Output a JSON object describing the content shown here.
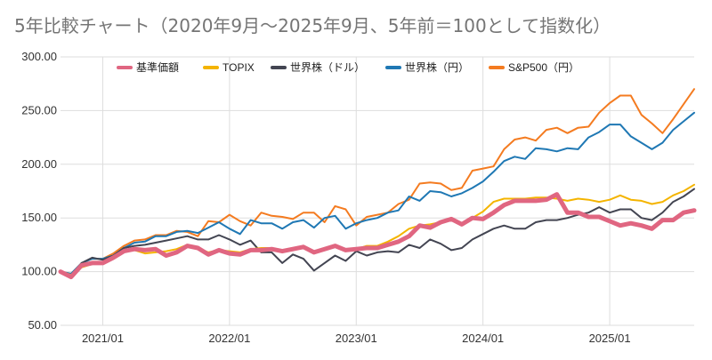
{
  "chart_data": {
    "type": "line",
    "title": "5年比較チャート（2020年9月〜2025年9月、5年前＝100として指数化）",
    "xlabel": "",
    "ylabel": "",
    "ylim": [
      50,
      300
    ],
    "yticks": [
      "300.00",
      "250.00",
      "200.00",
      "150.00",
      "100.00",
      "50.00"
    ],
    "xticks": [
      "2021/01",
      "2022/01",
      "2023/01",
      "2024/01",
      "2025/01"
    ],
    "grid": true,
    "legend_position": "top",
    "x": [
      "2020/09",
      "2020/10",
      "2020/11",
      "2020/12",
      "2021/01",
      "2021/02",
      "2021/03",
      "2021/04",
      "2021/05",
      "2021/06",
      "2021/07",
      "2021/08",
      "2021/09",
      "2021/10",
      "2021/11",
      "2021/12",
      "2022/01",
      "2022/02",
      "2022/03",
      "2022/04",
      "2022/05",
      "2022/06",
      "2022/07",
      "2022/08",
      "2022/09",
      "2022/10",
      "2022/11",
      "2022/12",
      "2023/01",
      "2023/02",
      "2023/03",
      "2023/04",
      "2023/05",
      "2023/06",
      "2023/07",
      "2023/08",
      "2023/09",
      "2023/10",
      "2023/11",
      "2023/12",
      "2024/01",
      "2024/02",
      "2024/03",
      "2024/04",
      "2024/05",
      "2024/06",
      "2024/07",
      "2024/08",
      "2024/09",
      "2024/10",
      "2024/11",
      "2024/12",
      "2025/01",
      "2025/02",
      "2025/03",
      "2025/04",
      "2025/05",
      "2025/06",
      "2025/07",
      "2025/08",
      "2025/09"
    ],
    "series": [
      {
        "name": "基準価額",
        "color": "#e06681",
        "width": 5,
        "values": [
          100,
          95,
          106,
          108,
          108,
          113,
          119,
          121,
          120,
          121,
          115,
          118,
          124,
          122,
          116,
          120,
          117,
          116,
          120,
          120,
          121,
          119,
          121,
          123,
          118,
          121,
          124,
          120,
          121,
          122,
          122,
          125,
          128,
          133,
          143,
          141,
          146,
          149,
          144,
          150,
          149,
          155,
          162,
          166,
          166,
          166,
          167,
          172,
          155,
          155,
          151,
          151,
          147,
          143,
          145,
          143,
          140,
          148,
          148,
          155,
          157
        ]
      },
      {
        "name": "TOPIX",
        "color": "#f4b400",
        "width": 2,
        "values": [
          100,
          97,
          104,
          107,
          108,
          113,
          120,
          120,
          117,
          118,
          119,
          121,
          125,
          122,
          118,
          120,
          119,
          118,
          121,
          122,
          122,
          118,
          121,
          123,
          117,
          121,
          124,
          119,
          121,
          124,
          124,
          128,
          133,
          140,
          143,
          144,
          146,
          148,
          144,
          150,
          156,
          165,
          168,
          168,
          168,
          169,
          169,
          168,
          166,
          168,
          167,
          165,
          167,
          171,
          167,
          166,
          163,
          165,
          171,
          175,
          181
        ]
      },
      {
        "name": "世界株（ドル）",
        "color": "#434552",
        "width": 2,
        "values": [
          100,
          96,
          108,
          113,
          111,
          115,
          122,
          124,
          125,
          127,
          129,
          131,
          133,
          130,
          130,
          134,
          130,
          125,
          129,
          118,
          118,
          108,
          116,
          112,
          101,
          108,
          115,
          110,
          119,
          115,
          118,
          119,
          118,
          125,
          122,
          130,
          126,
          120,
          122,
          130,
          135,
          140,
          143,
          140,
          140,
          146,
          148,
          148,
          150,
          153,
          155,
          160,
          155,
          158,
          158,
          150,
          148,
          155,
          165,
          170,
          177
        ]
      },
      {
        "name": "世界株（円）",
        "color": "#1f78b4",
        "width": 2,
        "values": [
          100,
          98,
          108,
          112,
          112,
          115,
          122,
          127,
          128,
          133,
          133,
          137,
          138,
          136,
          141,
          146,
          140,
          135,
          148,
          145,
          145,
          140,
          146,
          148,
          141,
          150,
          152,
          140,
          145,
          148,
          150,
          155,
          157,
          170,
          166,
          175,
          174,
          170,
          173,
          178,
          184,
          193,
          203,
          207,
          205,
          215,
          214,
          212,
          215,
          214,
          225,
          230,
          237,
          237,
          226,
          220,
          214,
          220,
          232,
          240,
          248
        ]
      },
      {
        "name": "S&P500（円）",
        "color": "#f47b20",
        "width": 2,
        "values": [
          100,
          98,
          108,
          112,
          112,
          117,
          124,
          129,
          130,
          134,
          134,
          138,
          137,
          133,
          147,
          146,
          153,
          147,
          143,
          155,
          152,
          151,
          149,
          155,
          155,
          146,
          161,
          158,
          143,
          151,
          153,
          155,
          163,
          167,
          182,
          183,
          182,
          176,
          178,
          194,
          196,
          198,
          214,
          223,
          225,
          222,
          232,
          234,
          229,
          234,
          235,
          248,
          257,
          264,
          264,
          246,
          238,
          229,
          242,
          256,
          270
        ]
      }
    ]
  }
}
